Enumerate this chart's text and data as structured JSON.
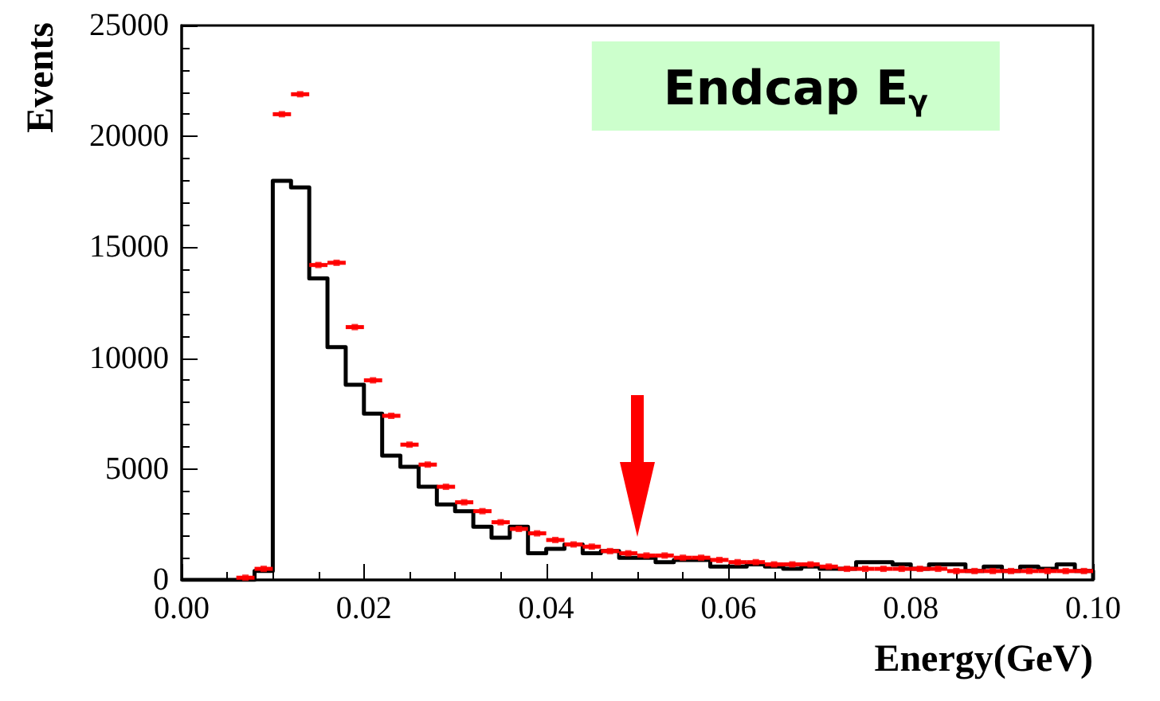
{
  "chart_data": {
    "type": "histogram",
    "title": "Endcap E$_{γ}$",
    "xlabel": "Energy(GeV)",
    "ylabel": "Events",
    "bins": [
      0,
      0.002,
      0.004,
      0.006,
      0.008,
      0.01,
      0.012,
      0.014,
      0.016,
      0.018,
      0.02,
      0.022,
      0.024,
      0.026,
      0.028,
      0.03,
      0.032,
      0.034,
      0.036,
      0.038,
      0.04,
      0.042,
      0.044,
      0.046,
      0.048,
      0.05,
      0.052,
      0.054,
      0.056,
      0.058,
      0.06,
      0.062,
      0.064,
      0.066,
      0.068,
      0.07,
      0.072,
      0.074,
      0.076,
      0.078,
      0.08,
      0.082,
      0.084,
      0.086,
      0.088,
      0.09,
      0.092,
      0.094,
      0.096,
      0.098,
      0.1
    ],
    "series": [
      {
        "color": "#000000",
        "values": [
          0,
          0,
          0,
          0,
          400,
          18000,
          17700,
          13600,
          10500,
          8800,
          7500,
          5600,
          5100,
          4200,
          3400,
          3100,
          2400,
          1900,
          2400,
          1200,
          1400,
          1600,
          1200,
          1300,
          1000,
          1000,
          800,
          900,
          900,
          600,
          600,
          700,
          600,
          500,
          600,
          500,
          500,
          800,
          800,
          700,
          500,
          700,
          700,
          400,
          600,
          400,
          600,
          500,
          700,
          400
        ]
      },
      {
        "type": "scatter",
        "color": "#ff0000",
        "marker": "square",
        "x": [
          0.007,
          0.009,
          0.011,
          0.013,
          0.015,
          0.017,
          0.019,
          0.021,
          0.023,
          0.025,
          0.027,
          0.029,
          0.031,
          0.033,
          0.035,
          0.037,
          0.039,
          0.041,
          0.043,
          0.045,
          0.047,
          0.049,
          0.051,
          0.053,
          0.055,
          0.057,
          0.059,
          0.061,
          0.063,
          0.065,
          0.067,
          0.069,
          0.071,
          0.073,
          0.075,
          0.077,
          0.079,
          0.081,
          0.083,
          0.085,
          0.087,
          0.089,
          0.091,
          0.093,
          0.095,
          0.097,
          0.099
        ],
        "values": [
          100,
          500,
          21000,
          21900,
          14200,
          14300,
          11400,
          9000,
          7400,
          6100,
          5200,
          4200,
          3500,
          3100,
          2600,
          2300,
          2100,
          1800,
          1600,
          1500,
          1300,
          1200,
          1100,
          1100,
          1000,
          1000,
          900,
          800,
          800,
          700,
          700,
          700,
          600,
          500,
          500,
          500,
          500,
          500,
          500,
          400,
          400,
          400,
          400,
          400,
          400,
          400,
          400
        ],
        "xerrors": [
          0.001,
          0.001,
          0.001,
          0.001,
          0.001,
          0.001,
          0.001,
          0.001,
          0.001,
          0.001,
          0.001,
          0.001,
          0.001,
          0.001,
          0.001,
          0.001,
          0.001,
          0.001,
          0.001,
          0.001,
          0.001,
          0.001,
          0.001,
          0.001,
          0.001,
          0.001,
          0.001,
          0.001,
          0.001,
          0.001,
          0.001,
          0.001,
          0.001,
          0.001,
          0.001,
          0.001,
          0.001,
          0.001,
          0.001,
          0.001,
          0.001,
          0.001,
          0.001,
          0.001,
          0.001,
          0.001,
          0.001
        ]
      }
    ],
    "xlim": [
      0,
      0.1
    ],
    "xticks": [
      {
        "value": 0,
        "label": "0.00"
      },
      {
        "value": 0.02,
        "label": "0.02"
      },
      {
        "value": 0.04,
        "label": "0.04"
      },
      {
        "value": 0.06,
        "label": "0.06"
      },
      {
        "value": 0.08,
        "label": "0.08"
      },
      {
        "value": 0.1,
        "label": "0.10"
      }
    ],
    "ylim": [
      0,
      25000
    ],
    "yticks": [
      0,
      5000,
      10000,
      15000,
      20000,
      25000
    ],
    "grid": false
  }
}
